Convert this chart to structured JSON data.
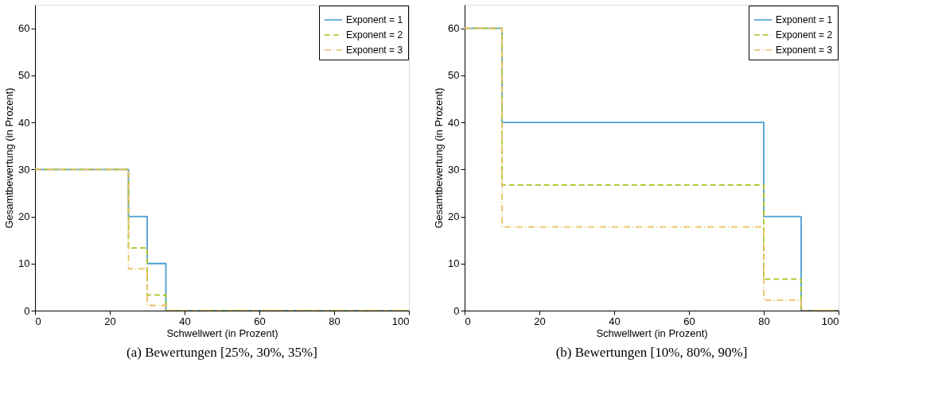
{
  "chart_data": [
    {
      "type": "step",
      "title": "(a)  Bewertungen [25%, 30%, 35%]",
      "xlabel": "Schwellwert (in Prozent)",
      "ylabel": "Gesamtbewertung (in Prozent)",
      "xlim": [
        0,
        100
      ],
      "xticks": [
        0,
        20,
        40,
        60,
        80,
        100
      ],
      "ylim": [
        0,
        65
      ],
      "yticks": [
        0,
        10,
        20,
        30,
        40,
        50,
        60
      ],
      "grid": false,
      "legend": "top right",
      "series": [
        {
          "name": "Exponent = 1",
          "color": "#4a9fd4",
          "line_style": "solid",
          "x": [
            0,
            25,
            30,
            35,
            100
          ],
          "values": [
            30,
            20,
            10,
            0,
            0
          ]
        },
        {
          "name": "Exponent = 2",
          "color": "#a9c41f",
          "line_style": "dashed",
          "x": [
            0,
            25,
            30,
            35,
            100
          ],
          "values": [
            30,
            13.3,
            3.3,
            0,
            0
          ]
        },
        {
          "name": "Exponent = 3",
          "color": "#e8c060",
          "line_style": "dashdot",
          "x": [
            0,
            25,
            30,
            35,
            100
          ],
          "values": [
            30,
            8.9,
            1.1,
            0,
            0
          ]
        }
      ]
    },
    {
      "type": "step",
      "title": "(b)  Bewertungen [10%, 80%, 90%]",
      "xlabel": "Schwellwert (in Prozent)",
      "ylabel": "Gesamtbewertung (in Prozent)",
      "xlim": [
        0,
        100
      ],
      "xticks": [
        0,
        20,
        40,
        60,
        80,
        100
      ],
      "ylim": [
        0,
        65
      ],
      "yticks": [
        0,
        10,
        20,
        30,
        40,
        50,
        60
      ],
      "grid": false,
      "legend": "top right",
      "series": [
        {
          "name": "Exponent = 1",
          "color": "#4a9fd4",
          "line_style": "solid",
          "x": [
            0,
            10,
            80,
            90,
            100
          ],
          "values": [
            60,
            40,
            20,
            0,
            0
          ]
        },
        {
          "name": "Exponent = 2",
          "color": "#a9c41f",
          "line_style": "dashed",
          "x": [
            0,
            10,
            80,
            90,
            100
          ],
          "values": [
            60,
            26.7,
            6.7,
            0,
            0
          ]
        },
        {
          "name": "Exponent = 3",
          "color": "#e8c060",
          "line_style": "dashdot",
          "x": [
            0,
            10,
            80,
            90,
            100
          ],
          "values": [
            60,
            17.8,
            2.2,
            0,
            0
          ]
        }
      ]
    }
  ]
}
